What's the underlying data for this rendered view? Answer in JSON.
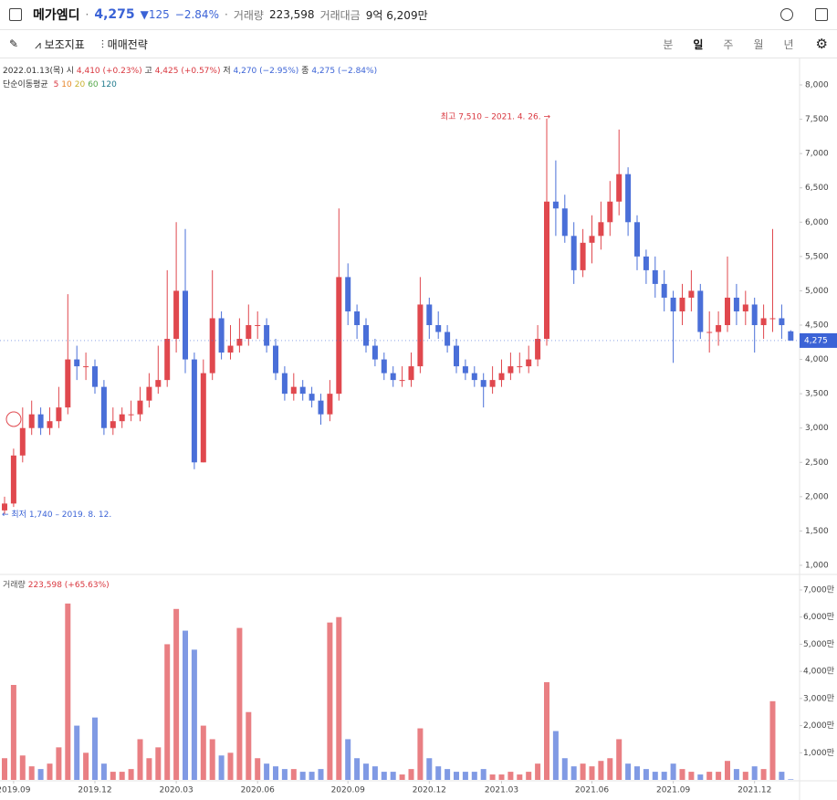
{
  "header": {
    "name": "메가엠디",
    "price": "4,275",
    "change": "125",
    "change_pct": "−2.84%",
    "volume_label": "거래량",
    "volume": "223,598",
    "amount_label": "거래대금",
    "amount": "9억 6,209만"
  },
  "toolbar": {
    "indicators": "보조지표",
    "strategy": "매매전략",
    "periods": [
      "분",
      "일",
      "주",
      "월",
      "년"
    ]
  },
  "legend": {
    "date": "2022.01.13(목)",
    "open_label": "시",
    "open": "4,410 (+0.23%)",
    "high_label": "고",
    "high": "4,425 (+0.57%)",
    "low_label": "저",
    "low": "4,270 (−2.95%)",
    "close_label": "종",
    "close": "4,275 (−2.84%)",
    "ma_label": "단순이동평균",
    "ma": [
      {
        "name": "5",
        "color": "#d9363e"
      },
      {
        "name": "10",
        "color": "#e8862a"
      },
      {
        "name": "20",
        "color": "#c9b22e"
      },
      {
        "name": "60",
        "color": "#55a84a"
      },
      {
        "name": "120",
        "color": "#1f7a8c"
      }
    ]
  },
  "chart_data": [
    {
      "type": "candlestick",
      "up_color": "#e0484e",
      "down_color": "#4a6fd8",
      "grid": false,
      "open": [
        1800,
        1900,
        2600,
        3000,
        3200,
        3000,
        3100,
        3300,
        4000,
        3900,
        3900,
        3600,
        3000,
        3100,
        3200,
        3200,
        3400,
        3600,
        3700,
        4300,
        5000,
        4000,
        2500,
        3800,
        4600,
        4100,
        4200,
        4300,
        4500,
        4500,
        4200,
        3800,
        3500,
        3600,
        3500,
        3400,
        3200,
        3500,
        5200,
        4700,
        4500,
        4200,
        4000,
        3800,
        3700,
        3700,
        3900,
        4800,
        4500,
        4400,
        4200,
        3900,
        3800,
        3700,
        3600,
        3700,
        3800,
        3900,
        3900,
        4000,
        4300,
        6300,
        6200,
        5800,
        5300,
        5700,
        5800,
        6000,
        6300,
        6700,
        6000,
        5500,
        5300,
        5100,
        4900,
        4700,
        4900,
        5000,
        4400,
        4400,
        4500,
        4900,
        4700,
        4800,
        4500,
        4600,
        4600,
        4410
      ],
      "high": [
        2000,
        2700,
        3300,
        3400,
        3300,
        3300,
        3600,
        4950,
        4200,
        4100,
        4000,
        3700,
        3300,
        3300,
        3400,
        3600,
        3800,
        4200,
        5300,
        6000,
        5900,
        4100,
        4000,
        5300,
        4700,
        4500,
        4600,
        4800,
        4700,
        4600,
        4300,
        3900,
        3800,
        3700,
        3600,
        3500,
        3700,
        6200,
        5400,
        4800,
        4600,
        4300,
        4100,
        3900,
        3900,
        4100,
        5200,
        4900,
        4700,
        4500,
        4300,
        4000,
        3900,
        3800,
        3900,
        4000,
        4100,
        4100,
        4200,
        4500,
        7510,
        6900,
        6400,
        6000,
        5900,
        6100,
        6300,
        6600,
        7350,
        6800,
        6100,
        5600,
        5500,
        5300,
        5000,
        5100,
        5300,
        5100,
        4700,
        4700,
        5500,
        5100,
        5000,
        4900,
        4800,
        5900,
        4800,
        4425
      ],
      "low": [
        1740,
        1850,
        2500,
        2900,
        2900,
        2900,
        3000,
        3200,
        3700,
        3700,
        3500,
        2900,
        2900,
        3000,
        3100,
        3100,
        3300,
        3500,
        3600,
        4100,
        3800,
        2400,
        2500,
        3700,
        4000,
        4000,
        4100,
        4200,
        4300,
        4100,
        3700,
        3400,
        3400,
        3400,
        3300,
        3050,
        3100,
        3400,
        4500,
        4300,
        4100,
        3900,
        3700,
        3600,
        3600,
        3600,
        3800,
        4300,
        4300,
        4100,
        3800,
        3700,
        3600,
        3300,
        3500,
        3600,
        3700,
        3800,
        3800,
        3900,
        4200,
        5800,
        5700,
        5100,
        5200,
        5400,
        5600,
        5800,
        6100,
        5800,
        5300,
        5100,
        4900,
        4700,
        3950,
        4500,
        4700,
        4300,
        4100,
        4200,
        4400,
        4500,
        4500,
        4100,
        4300,
        4400,
        4300,
        4270
      ],
      "close": [
        1900,
        2600,
        3000,
        3200,
        3000,
        3100,
        3300,
        4000,
        3900,
        3900,
        3600,
        3000,
        3100,
        3200,
        3200,
        3400,
        3600,
        3700,
        4300,
        5000,
        4000,
        2500,
        3800,
        4600,
        4100,
        4200,
        4300,
        4500,
        4500,
        4200,
        3800,
        3500,
        3600,
        3500,
        3400,
        3200,
        3500,
        5200,
        4700,
        4500,
        4200,
        4000,
        3800,
        3700,
        3700,
        3900,
        4800,
        4500,
        4400,
        4200,
        3900,
        3800,
        3700,
        3600,
        3700,
        3800,
        3900,
        3900,
        4000,
        4300,
        6300,
        6200,
        5800,
        5300,
        5700,
        5800,
        6000,
        6300,
        6700,
        6000,
        5500,
        5300,
        5100,
        4900,
        4700,
        4900,
        5000,
        4400,
        4400,
        4500,
        4900,
        4700,
        4800,
        4500,
        4600,
        4600,
        4500,
        4275
      ],
      "ylim": [
        1000,
        8000
      ],
      "yticks": [
        {
          "value": 1000,
          "label": "1,000"
        },
        {
          "value": 1500,
          "label": "1,500"
        },
        {
          "value": 2000,
          "label": "2,000"
        },
        {
          "value": 2500,
          "label": "2,500"
        },
        {
          "value": 3000,
          "label": "3,000"
        },
        {
          "value": 3500,
          "label": "3,500"
        },
        {
          "value": 4000,
          "label": "4,000"
        },
        {
          "value": 4500,
          "label": "4,500"
        },
        {
          "value": 5000,
          "label": "5,000"
        },
        {
          "value": 5500,
          "label": "5,500"
        },
        {
          "value": 6000,
          "label": "6,000"
        },
        {
          "value": 6500,
          "label": "6,500"
        },
        {
          "value": 7000,
          "label": "7,000"
        },
        {
          "value": 7500,
          "label": "7,500"
        },
        {
          "value": 8000,
          "label": "8,000"
        }
      ],
      "last_price": {
        "value": 4275,
        "label": "4,275"
      },
      "annotations": [
        {
          "text": "최고 7,510 – 2021. 4. 26. →",
          "value": 7510,
          "index": 60,
          "color": "#d9363e"
        },
        {
          "text": "← 최저 1,740 – 2019. 8. 12.",
          "value": 1740,
          "index": 0,
          "color": "#3b63d6"
        }
      ]
    },
    {
      "type": "volume",
      "title": "거래량",
      "title_value": "223,598 (+65.63%)",
      "categories": [
        null,
        "2019.09",
        null,
        null,
        null,
        null,
        null,
        null,
        null,
        null,
        "2019.12",
        null,
        null,
        null,
        null,
        null,
        null,
        null,
        null,
        "2020.03",
        null,
        null,
        null,
        null,
        null,
        null,
        null,
        null,
        "2020.06",
        null,
        null,
        null,
        null,
        null,
        null,
        null,
        null,
        null,
        "2020.09",
        null,
        null,
        null,
        null,
        null,
        null,
        null,
        null,
        "2020.12",
        null,
        null,
        null,
        null,
        null,
        null,
        null,
        "2021.03",
        null,
        null,
        null,
        null,
        null,
        null,
        null,
        null,
        null,
        "2021.06",
        null,
        null,
        null,
        null,
        null,
        null,
        null,
        null,
        "2021.09",
        null,
        null,
        null,
        null,
        null,
        null,
        null,
        null,
        "2021.12",
        null,
        null,
        null,
        null
      ],
      "values": [
        8000000,
        35000000,
        9000000,
        5000000,
        4000000,
        6000000,
        12000000,
        65000000,
        20000000,
        10000000,
        23000000,
        6000000,
        3000000,
        3000000,
        4000000,
        15000000,
        8000000,
        12000000,
        50000000,
        63000000,
        55000000,
        48000000,
        20000000,
        15000000,
        9000000,
        10000000,
        56000000,
        25000000,
        8000000,
        6000000,
        5000000,
        4000000,
        4000000,
        3000000,
        3000000,
        4000000,
        58000000,
        60000000,
        15000000,
        8000000,
        6000000,
        5000000,
        3000000,
        3000000,
        2000000,
        4000000,
        19000000,
        8000000,
        5000000,
        4000000,
        3000000,
        3000000,
        3000000,
        4000000,
        2000000,
        2000000,
        3000000,
        2000000,
        3000000,
        6000000,
        36000000,
        18000000,
        8000000,
        5000000,
        6000000,
        5000000,
        7000000,
        8000000,
        15000000,
        6000000,
        5000000,
        4000000,
        3000000,
        3000000,
        6000000,
        4000000,
        3000000,
        2000000,
        3000000,
        3000000,
        7000000,
        4000000,
        3000000,
        5000000,
        4000000,
        29000000,
        3000000,
        223598
      ],
      "ylim": [
        0,
        70000000
      ],
      "yticks": [
        {
          "value": 10000000,
          "label": "1,000만"
        },
        {
          "value": 20000000,
          "label": "2,000만"
        },
        {
          "value": 30000000,
          "label": "3,000만"
        },
        {
          "value": 40000000,
          "label": "4,000만"
        },
        {
          "value": 50000000,
          "label": "5,000만"
        },
        {
          "value": 60000000,
          "label": "6,000만"
        },
        {
          "value": 70000000,
          "label": "7,000만"
        }
      ]
    }
  ]
}
